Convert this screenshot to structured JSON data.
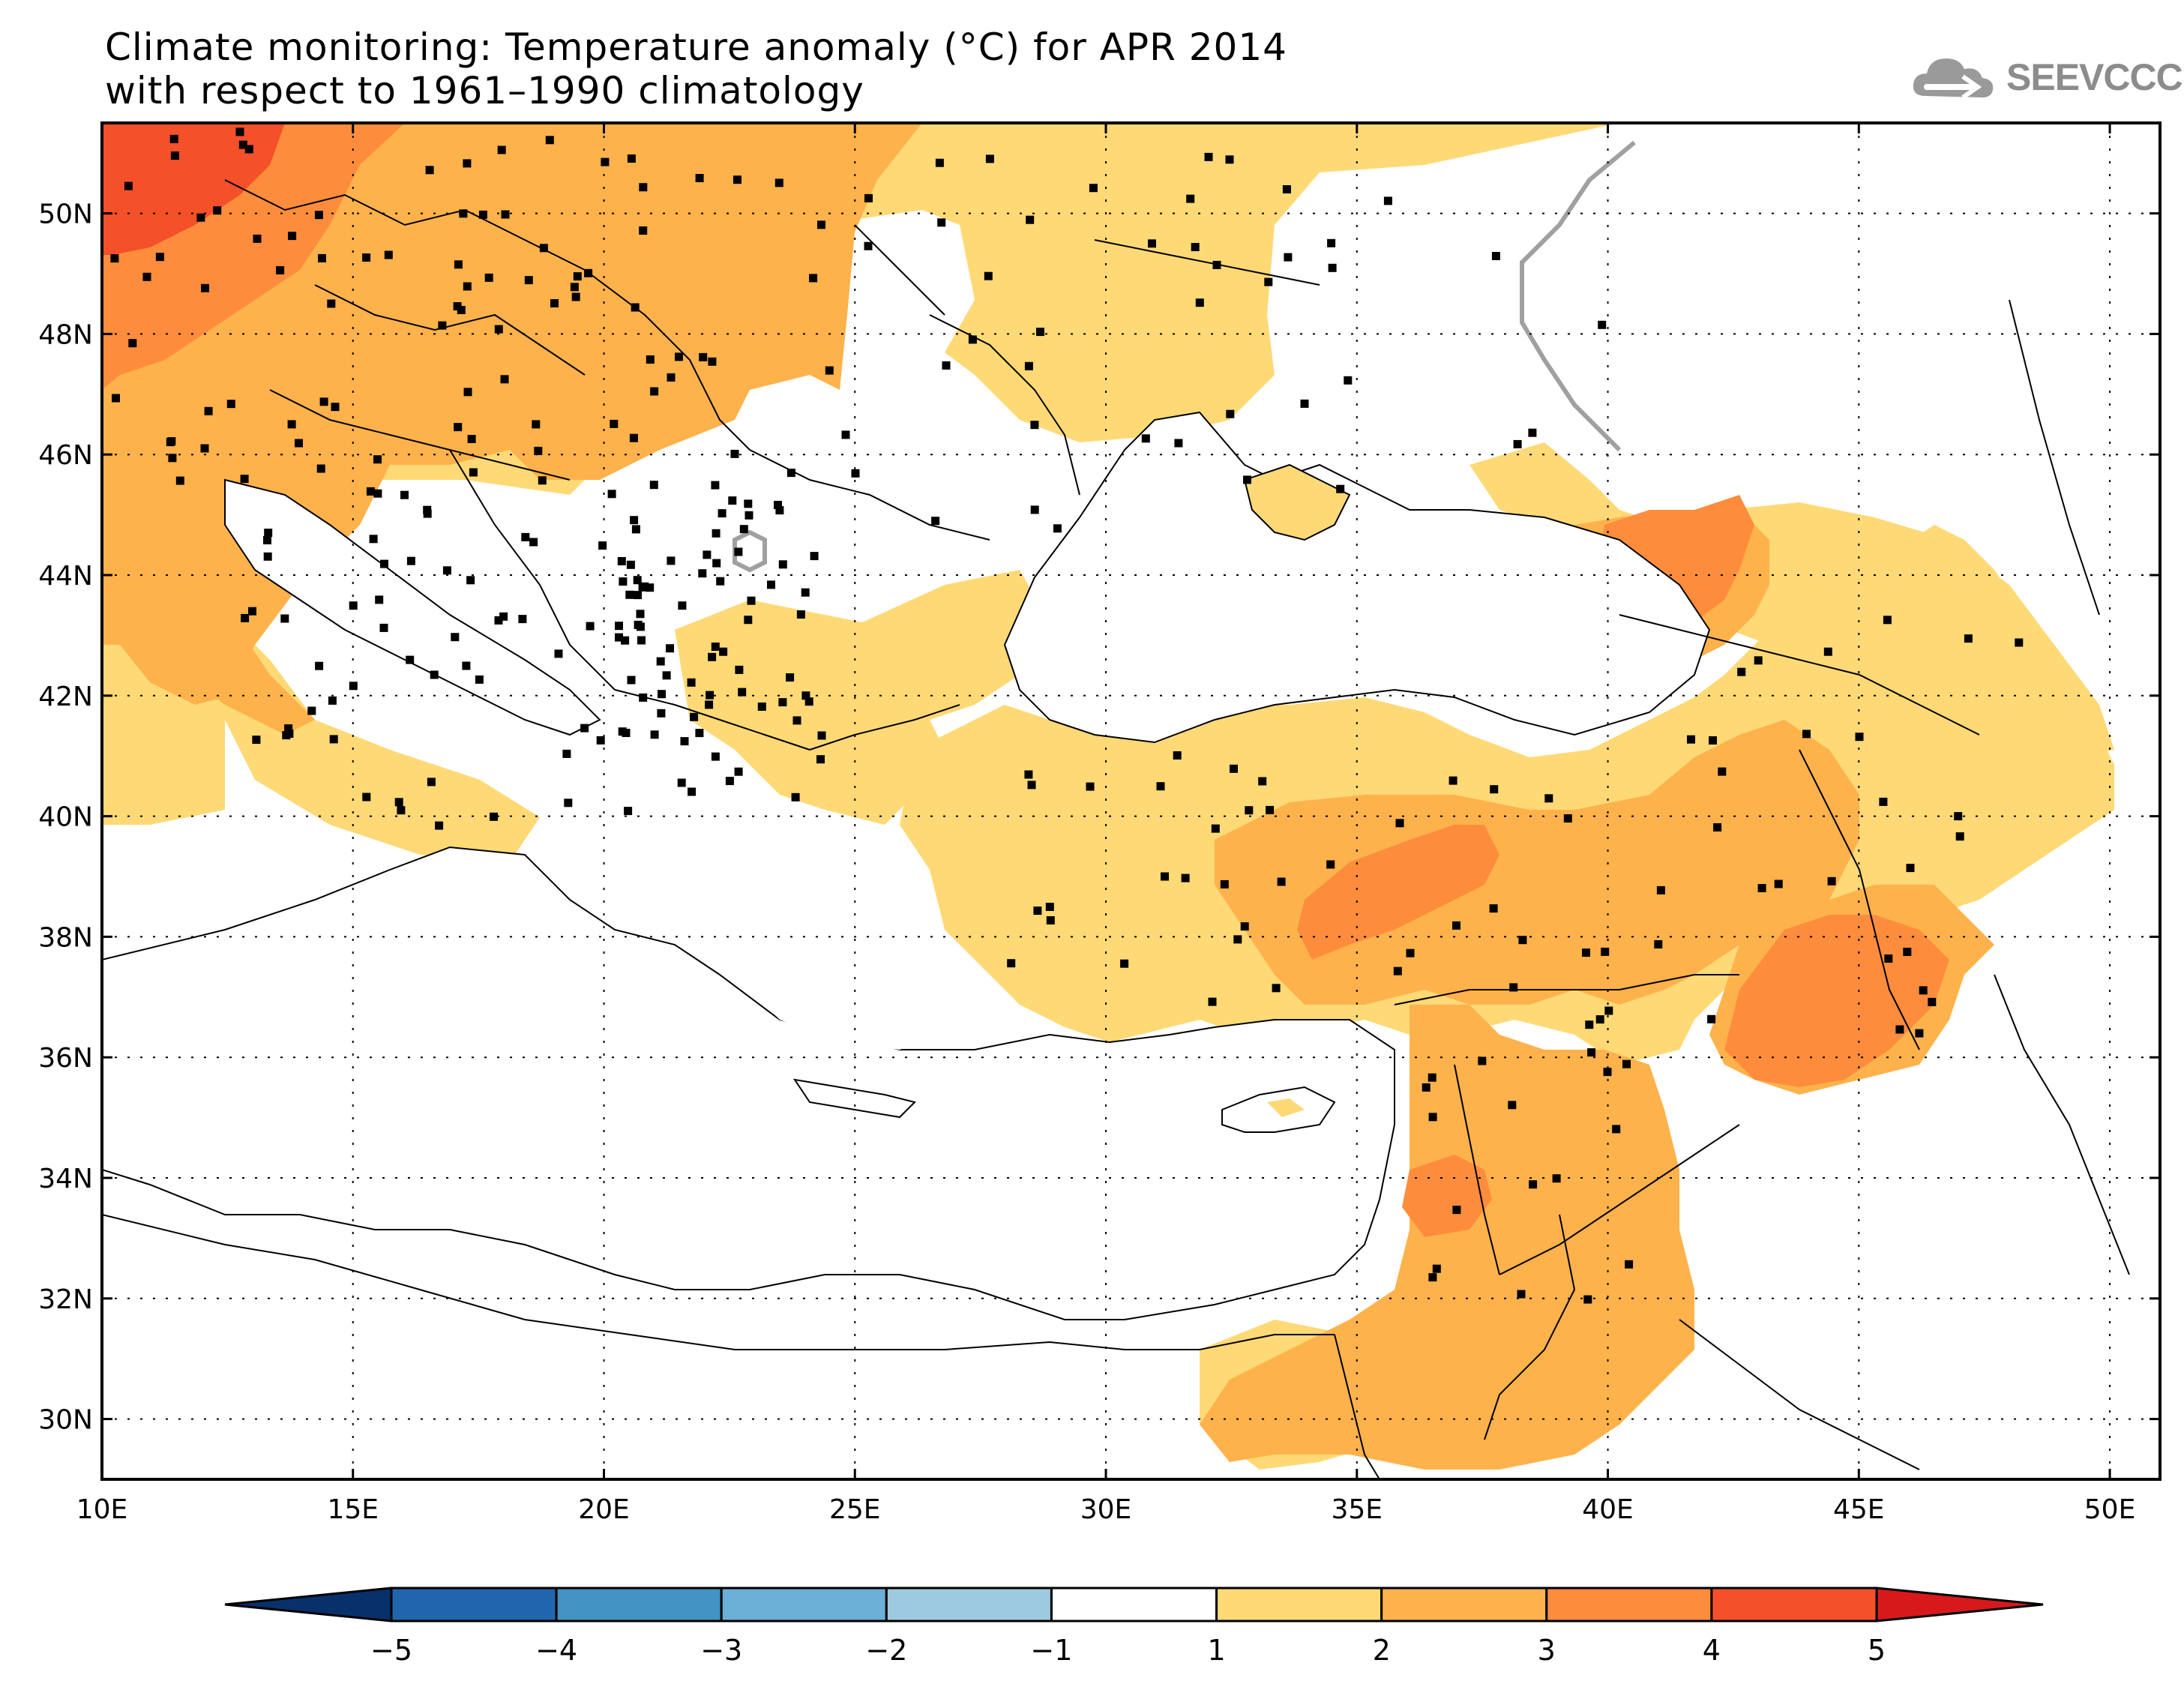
{
  "title": {
    "line1": "Climate monitoring: Temperature anomaly (°C) for APR 2014",
    "line2": "with respect to 1961–1990 climatology"
  },
  "logo": {
    "text": "SEEVCCC",
    "icon": "cloud-icon"
  },
  "map": {
    "lon_range": [
      10,
      51
    ],
    "lat_range": [
      29,
      51.5
    ],
    "lon_ticks": [
      "10E",
      "15E",
      "20E",
      "25E",
      "30E",
      "35E",
      "40E",
      "45E",
      "50E"
    ],
    "lat_ticks": [
      "30N",
      "32N",
      "34N",
      "36N",
      "38N",
      "40N",
      "42N",
      "44N",
      "46N",
      "48N",
      "50N"
    ],
    "grid": "dotted"
  },
  "colorbar": {
    "ticks": [
      "−5",
      "−4",
      "−3",
      "−2",
      "−1",
      "1",
      "2",
      "3",
      "4",
      "5"
    ],
    "colors": [
      "#08306b",
      "#2166ac",
      "#4393c3",
      "#6baed6",
      "#9ecae1",
      "#ffffff",
      "#fed976",
      "#feb24c",
      "#fd8d3c",
      "#f4502a",
      "#d7191c"
    ]
  },
  "colors": {
    "anomaly_1_2": "#fed976",
    "anomaly_2_3": "#feb24c",
    "anomaly_3_4": "#fd8d3c",
    "anomaly_4_5": "#f4502a"
  }
}
